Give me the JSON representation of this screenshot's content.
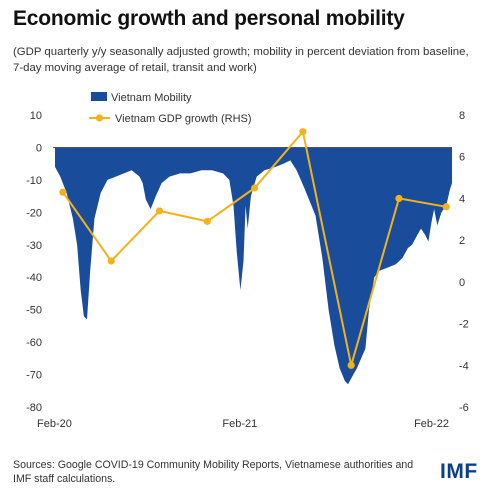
{
  "header": {
    "title": "Economic growth and personal mobility",
    "subtitle_line1": "(GDP quarterly y/y seasonally adjusted growth; mobility in percent deviation from baseline,",
    "subtitle_line2": "7-day moving average of retail, transit and work)"
  },
  "footer": {
    "source_line1": "Sources: Google COVID-19 Community Mobility Reports, Vietnamese authorities and",
    "source_line2": "IMF staff calculations.",
    "logo": "IMF"
  },
  "colors": {
    "mobility": "#1a4c9c",
    "gdp": "#f2b21b",
    "axis": "#555555"
  },
  "chart_data": {
    "type": "area",
    "x_ticks": [
      "Feb-20",
      "Feb-21",
      "Feb-22"
    ],
    "y_left_ticks": [
      "10",
      "0",
      "-10",
      "-20",
      "-30",
      "-40",
      "-50",
      "-60",
      "-70",
      "-80"
    ],
    "y_right_ticks": [
      "8",
      "6",
      "4",
      "2",
      "0",
      "-2",
      "-4",
      "-6"
    ],
    "ylim_left": [
      -80,
      10
    ],
    "ylim_right": [
      -6,
      8
    ],
    "xlim": [
      "2020-02-15",
      "2022-03-12"
    ],
    "legend_position": "top-center",
    "series": [
      {
        "name": "Vietnam Mobility",
        "type": "area",
        "axis": "left",
        "x": [
          "2020-02-15",
          "2020-02-25",
          "2020-03-08",
          "2020-03-20",
          "2020-03-28",
          "2020-04-04",
          "2020-04-10",
          "2020-04-16",
          "2020-04-22",
          "2020-04-30",
          "2020-05-12",
          "2020-05-25",
          "2020-06-10",
          "2020-06-25",
          "2020-07-10",
          "2020-07-25",
          "2020-07-31",
          "2020-08-06",
          "2020-08-15",
          "2020-08-25",
          "2020-09-05",
          "2020-09-20",
          "2020-10-10",
          "2020-10-30",
          "2020-11-20",
          "2020-12-10",
          "2020-12-31",
          "2021-01-12",
          "2021-01-20",
          "2021-01-26",
          "2021-02-02",
          "2021-02-08",
          "2021-02-12",
          "2021-02-16",
          "2021-02-22",
          "2021-03-05",
          "2021-03-20",
          "2021-04-10",
          "2021-04-25",
          "2021-05-08",
          "2021-05-20",
          "2021-06-05",
          "2021-06-25",
          "2021-07-08",
          "2021-07-20",
          "2021-07-31",
          "2021-08-10",
          "2021-08-20",
          "2021-08-26",
          "2021-09-05",
          "2021-09-12",
          "2021-09-20",
          "2021-09-28",
          "2021-10-05",
          "2021-10-15",
          "2021-10-25",
          "2021-11-10",
          "2021-11-25",
          "2021-12-08",
          "2021-12-18",
          "2021-12-26",
          "2022-01-05",
          "2022-01-12",
          "2022-01-20",
          "2022-01-26",
          "2022-02-01",
          "2022-02-06",
          "2022-02-12",
          "2022-02-20",
          "2022-03-01",
          "2022-03-08",
          "2022-03-12"
        ],
        "values": [
          -6,
          -9,
          -14,
          -22,
          -30,
          -44,
          -52,
          -53,
          -38,
          -22,
          -14,
          -10,
          -9,
          -8,
          -7,
          -9,
          -11,
          -16,
          -19,
          -15,
          -11,
          -9,
          -8,
          -8,
          -7,
          -7,
          -8,
          -10,
          -18,
          -32,
          -44,
          -35,
          -18,
          -25,
          -15,
          -9,
          -7,
          -6,
          -5,
          -4,
          -7,
          -13,
          -21,
          -34,
          -50,
          -61,
          -68,
          -72,
          -73,
          -70,
          -68,
          -65,
          -62,
          -50,
          -40,
          -38,
          -37,
          -36,
          -34,
          -31,
          -30,
          -27,
          -25,
          -27,
          -29,
          -23,
          -19,
          -24,
          -20,
          -18,
          -13,
          -11
        ]
      },
      {
        "name": "Vietnam GDP growth (RHS)",
        "type": "line",
        "axis": "right",
        "x": [
          "2020-03-01",
          "2020-06-01",
          "2020-09-01",
          "2020-12-01",
          "2021-03-01",
          "2021-06-01",
          "2021-09-01",
          "2021-12-01",
          "2022-03-01"
        ],
        "values": [
          4.3,
          1.0,
          3.4,
          2.9,
          4.5,
          7.2,
          -4.0,
          4.0,
          3.6
        ]
      }
    ]
  }
}
